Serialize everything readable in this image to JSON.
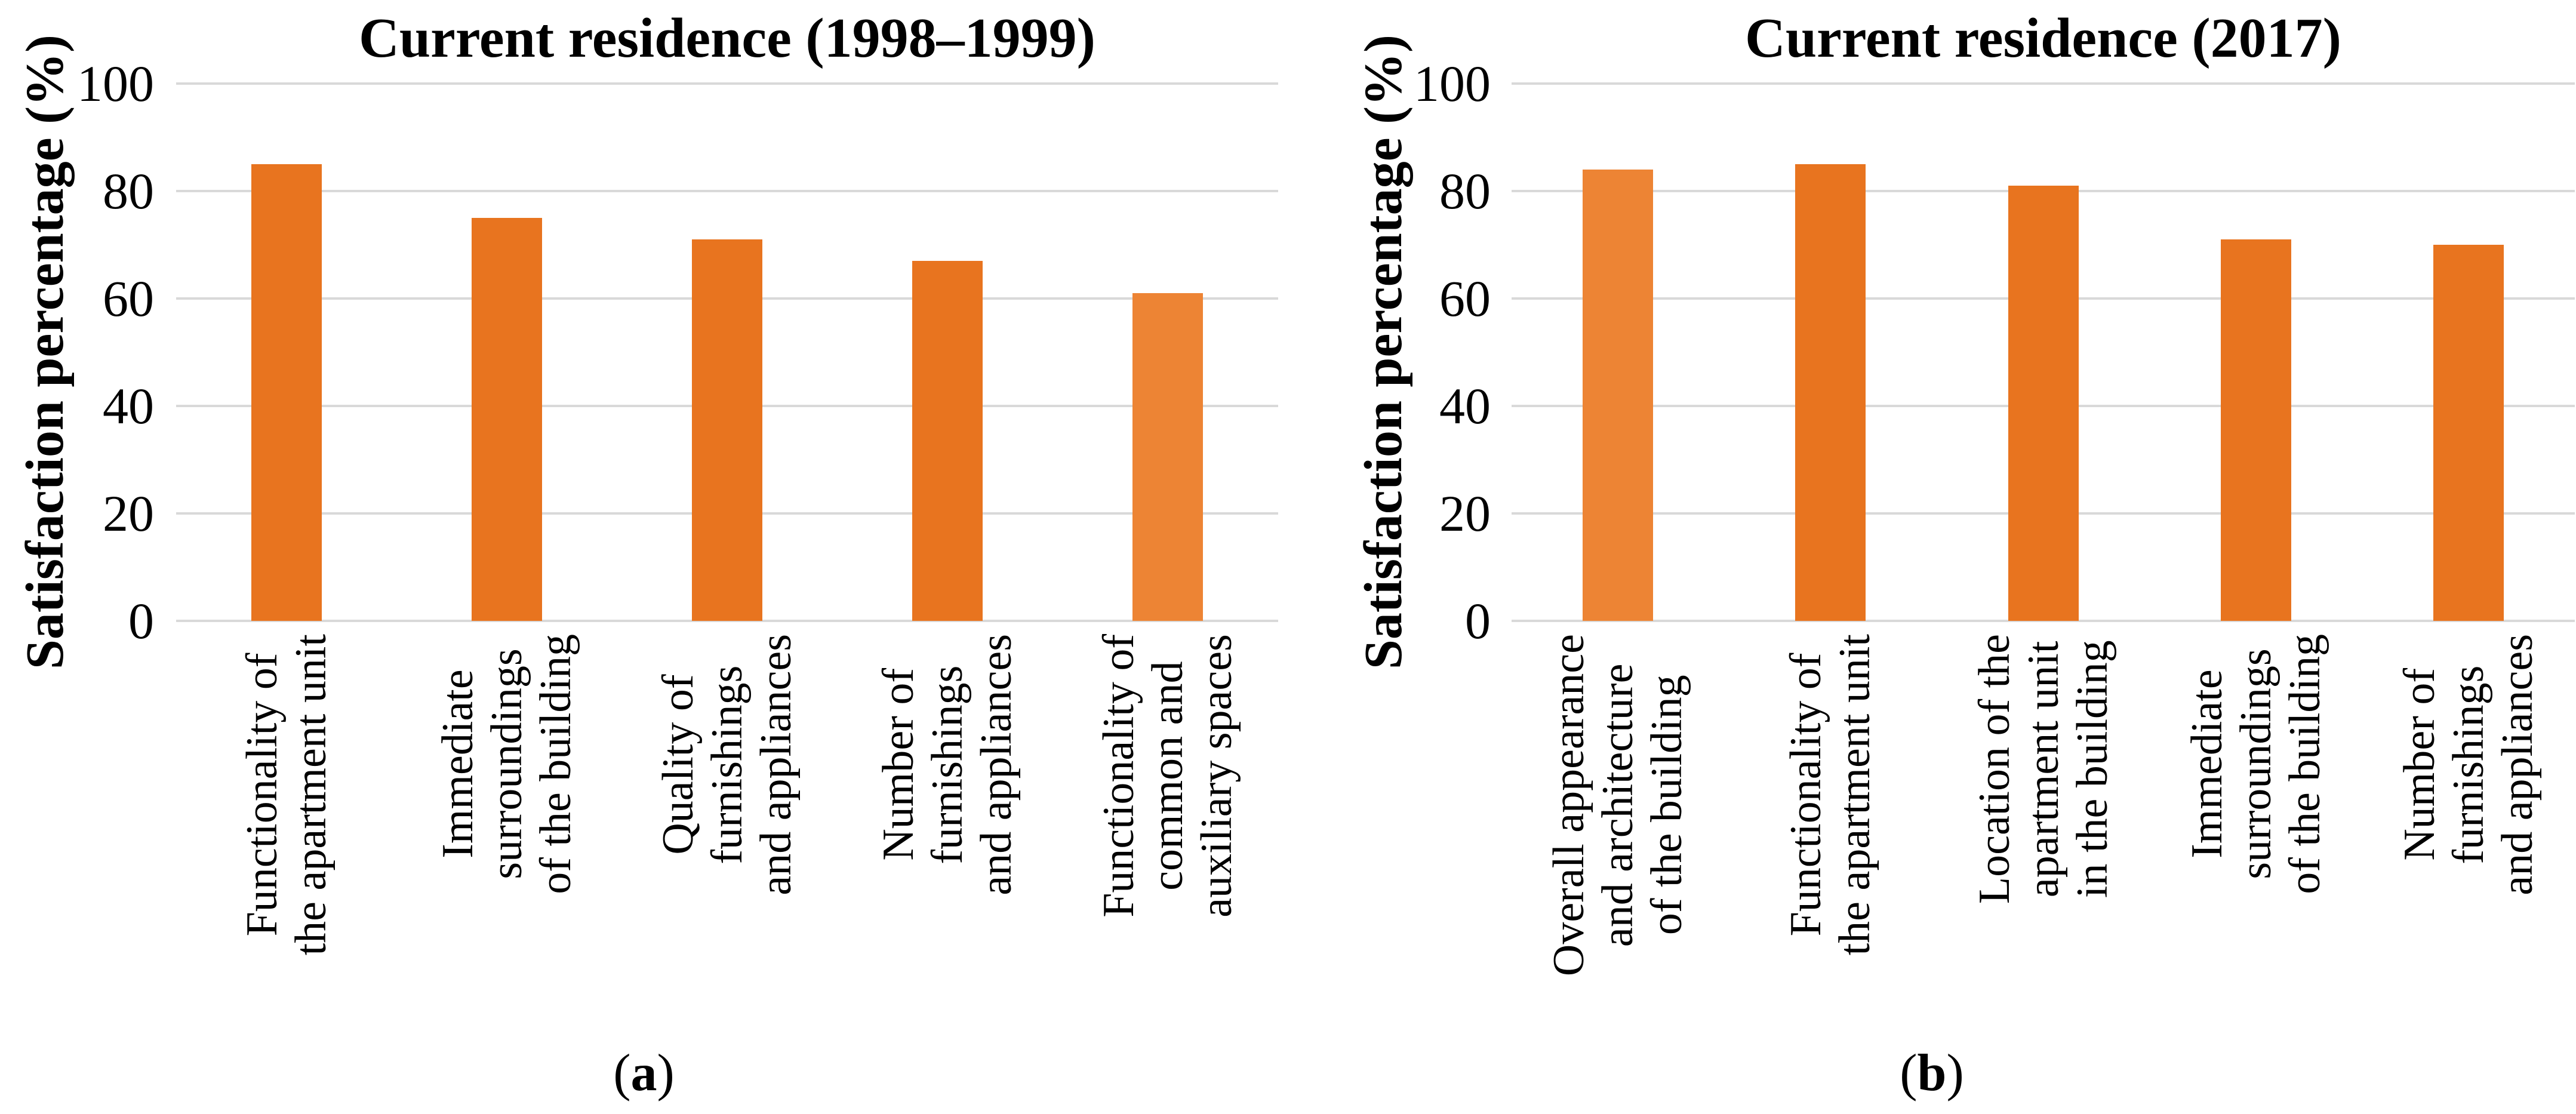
{
  "colors": {
    "bar_normal": "#E8741F",
    "bar_light": "#ED8434",
    "gridline": "#D9D9D9",
    "text": "#000000",
    "background": "#FFFFFF"
  },
  "chart_data": [
    {
      "type": "bar",
      "panel": "a",
      "title": "Current residence (1998–1999)",
      "ylabel": "Satisfaction percentage (%)",
      "xlabel": "",
      "ylim": [
        0,
        100
      ],
      "yticks": [
        0,
        20,
        40,
        60,
        80,
        100
      ],
      "grid": true,
      "legend": "none",
      "categories": [
        "Functionality of\nthe apartment unit",
        "Immediate\nsurroundings\nof the building",
        "Quality of\nfurnishings\nand appliances",
        "Number of\nfurnishings\nand appliances",
        "Functionality of\ncommon and\nauxiliary spaces"
      ],
      "values": [
        85,
        75,
        71,
        67,
        61
      ],
      "bar_colors": [
        "#E8741F",
        "#E8741F",
        "#E8741F",
        "#E8741F",
        "#ED8434"
      ],
      "caption": {
        "open": "(",
        "letter": "a",
        "close": ")"
      }
    },
    {
      "type": "bar",
      "panel": "b",
      "title": "Current residence (2017)",
      "ylabel": "Satisfaction percentage (%)",
      "xlabel": "",
      "ylim": [
        0,
        100
      ],
      "yticks": [
        0,
        20,
        40,
        60,
        80,
        100
      ],
      "grid": true,
      "legend": "none",
      "categories": [
        "Overall appearance\nand architecture\nof the building",
        "Functionality of\nthe apartment unit",
        "Location of the\napartment unit\nin the building",
        "Immediate\nsurroundings\nof the building",
        "Number of\nfurnishings\nand appliances"
      ],
      "values": [
        84,
        85,
        81,
        71,
        70
      ],
      "bar_colors": [
        "#ED8434",
        "#E8741F",
        "#E8741F",
        "#E8741F",
        "#E8741F"
      ],
      "caption": {
        "open": "(",
        "letter": "b",
        "close": ")"
      }
    }
  ]
}
